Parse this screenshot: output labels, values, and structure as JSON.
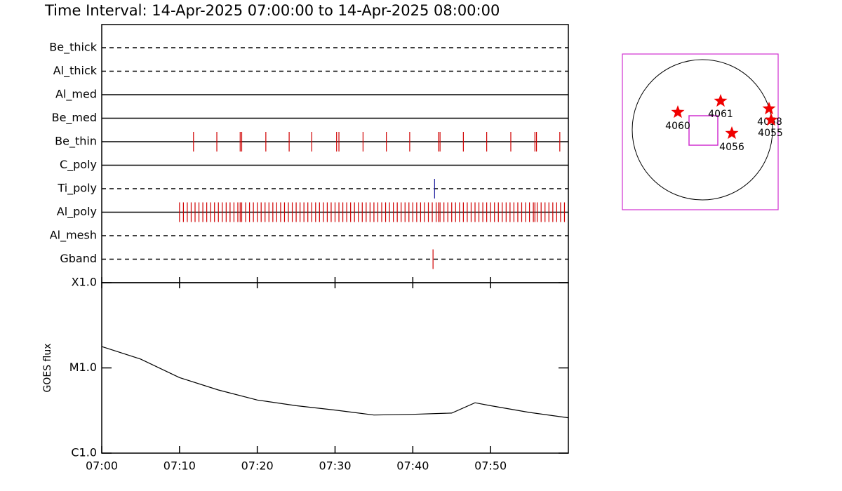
{
  "title": "Time Interval: 14-Apr-2025 07:00:00 to 14-Apr-2025 08:00:00",
  "chart_data": [
    {
      "type": "event",
      "xlim": [
        0,
        60
      ],
      "rows": [
        {
          "name": "Be_thick",
          "style": "dashed",
          "color": "#d00000",
          "x": []
        },
        {
          "name": "Al_thick",
          "style": "dashed",
          "color": "#d00000",
          "x": []
        },
        {
          "name": "Al_med",
          "style": "solid",
          "color": "#d00000",
          "x": []
        },
        {
          "name": "Be_med",
          "style": "solid",
          "color": "#d00000",
          "x": []
        },
        {
          "name": "Be_thin",
          "style": "solid",
          "color": "#d00000",
          "x": [
            11.8,
            14.8,
            17.8,
            18.0,
            21.1,
            24.1,
            27.0,
            30.2,
            30.5,
            33.6,
            36.6,
            39.6,
            43.3,
            43.5,
            46.5,
            49.5,
            52.6,
            55.7,
            55.9,
            58.9
          ]
        },
        {
          "name": "C_poly",
          "style": "solid",
          "color": "#d00000",
          "x": []
        },
        {
          "name": "Ti_poly",
          "style": "dashed",
          "color": "#2020a0",
          "x": [
            42.8
          ]
        },
        {
          "name": "Al_poly",
          "style": "solid",
          "color": "#d00000",
          "x": [
            10.0,
            10.5,
            11.0,
            11.5,
            12.0,
            12.5,
            13.0,
            13.5,
            14.0,
            14.5,
            15.0,
            15.5,
            16.0,
            16.5,
            17.0,
            17.5,
            17.8,
            18.0,
            18.5,
            19.0,
            19.5,
            20.0,
            20.5,
            21.0,
            21.5,
            22.0,
            22.5,
            23.0,
            23.5,
            24.0,
            24.5,
            25.0,
            25.5,
            26.0,
            26.5,
            27.0,
            27.5,
            28.0,
            28.5,
            29.0,
            29.5,
            30.0,
            30.5,
            31.0,
            31.5,
            32.0,
            32.5,
            33.0,
            33.5,
            34.0,
            34.5,
            35.0,
            35.5,
            36.0,
            36.5,
            37.0,
            37.5,
            38.0,
            38.5,
            39.0,
            39.5,
            40.0,
            40.5,
            41.0,
            41.5,
            42.0,
            42.5,
            43.0,
            43.3,
            43.5,
            44.0,
            44.5,
            45.0,
            45.5,
            46.0,
            46.5,
            47.0,
            47.5,
            48.0,
            48.5,
            49.0,
            49.5,
            50.0,
            50.5,
            51.0,
            51.5,
            52.0,
            52.5,
            53.0,
            53.5,
            54.0,
            54.5,
            55.0,
            55.5,
            55.7,
            56.0,
            56.5,
            57.0,
            57.5,
            58.0,
            58.5,
            59.0,
            59.5
          ]
        },
        {
          "name": "Al_mesh",
          "style": "dashed",
          "color": "#d00000",
          "x": []
        },
        {
          "name": "Gband",
          "style": "dashed",
          "color": "#d00000",
          "x": [
            42.6
          ]
        }
      ]
    },
    {
      "type": "line",
      "ylabel": "GOES flux",
      "log_scale": true,
      "xlim": [
        0,
        60
      ],
      "ylim": [
        1e-06,
        0.0001
      ],
      "xticks": [
        {
          "value": 0,
          "label": "07:00"
        },
        {
          "value": 10,
          "label": "07:10"
        },
        {
          "value": 20,
          "label": "07:20"
        },
        {
          "value": 30,
          "label": "07:30"
        },
        {
          "value": 40,
          "label": "07:40"
        },
        {
          "value": 50,
          "label": "07:50"
        }
      ],
      "yticks": [
        {
          "value": 1e-06,
          "label": "C1.0"
        },
        {
          "value": 1e-05,
          "label": "M1.0"
        },
        {
          "value": 0.0001,
          "label": "X1.0"
        }
      ],
      "x": [
        0,
        5,
        10,
        15,
        20,
        25,
        30,
        35,
        40,
        45,
        48,
        50,
        55,
        60
      ],
      "series": [
        {
          "color": "#000000",
          "values": [
            1.78e-05,
            1.27e-05,
            7.7e-06,
            5.5e-06,
            4.2e-06,
            3.6e-06,
            3.2e-06,
            2.8e-06,
            2.85e-06,
            2.95e-06,
            3.9e-06,
            3.6e-06,
            3e-06,
            2.6e-06
          ]
        }
      ]
    }
  ],
  "disk_map": {
    "regions": [
      "4060",
      "4061",
      "4056",
      "4058",
      "4055"
    ]
  }
}
